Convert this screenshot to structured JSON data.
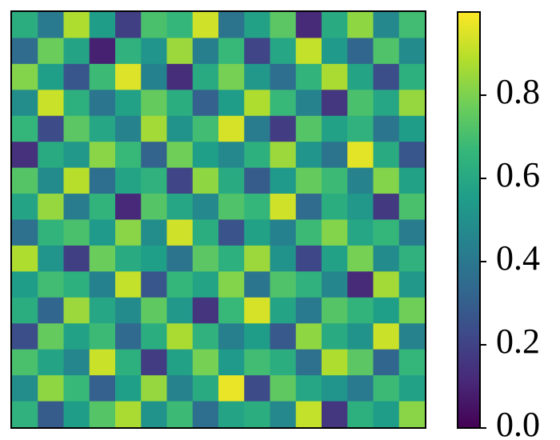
{
  "chart_data": {
    "type": "heatmap",
    "cmap": "viridis",
    "values": [
      [
        0.62,
        0.41,
        0.88,
        0.55,
        0.19,
        0.71,
        0.66,
        0.93,
        0.38,
        0.57,
        0.74,
        0.12,
        0.61,
        0.83,
        0.47,
        0.69
      ],
      [
        0.35,
        0.77,
        0.58,
        0.09,
        0.64,
        0.52,
        0.85,
        0.43,
        0.67,
        0.21,
        0.59,
        0.91,
        0.54,
        0.33,
        0.72,
        0.48
      ],
      [
        0.81,
        0.56,
        0.27,
        0.68,
        0.95,
        0.44,
        0.13,
        0.61,
        0.79,
        0.53,
        0.36,
        0.65,
        0.87,
        0.58,
        0.24,
        0.63
      ],
      [
        0.49,
        0.92,
        0.63,
        0.39,
        0.57,
        0.76,
        0.62,
        0.31,
        0.55,
        0.88,
        0.67,
        0.45,
        0.16,
        0.71,
        0.59,
        0.84
      ],
      [
        0.66,
        0.23,
        0.74,
        0.59,
        0.45,
        0.86,
        0.51,
        0.69,
        0.94,
        0.42,
        0.18,
        0.73,
        0.57,
        0.64,
        0.39,
        0.55
      ],
      [
        0.14,
        0.61,
        0.53,
        0.82,
        0.67,
        0.32,
        0.78,
        0.56,
        0.47,
        0.63,
        0.85,
        0.52,
        0.38,
        0.96,
        0.61,
        0.27
      ],
      [
        0.73,
        0.48,
        0.89,
        0.36,
        0.58,
        0.64,
        0.21,
        0.83,
        0.61,
        0.29,
        0.54,
        0.76,
        0.68,
        0.45,
        0.81,
        0.57
      ],
      [
        0.58,
        0.84,
        0.42,
        0.65,
        0.11,
        0.73,
        0.59,
        0.47,
        0.72,
        0.66,
        0.93,
        0.35,
        0.62,
        0.53,
        0.17,
        0.71
      ],
      [
        0.37,
        0.65,
        0.71,
        0.54,
        0.82,
        0.49,
        0.93,
        0.62,
        0.26,
        0.57,
        0.44,
        0.68,
        0.81,
        0.59,
        0.66,
        0.42
      ],
      [
        0.88,
        0.52,
        0.19,
        0.77,
        0.61,
        0.56,
        0.38,
        0.74,
        0.63,
        0.85,
        0.51,
        0.22,
        0.57,
        0.79,
        0.48,
        0.64
      ],
      [
        0.55,
        0.69,
        0.63,
        0.44,
        0.91,
        0.27,
        0.66,
        0.58,
        0.81,
        0.39,
        0.72,
        0.64,
        0.46,
        0.12,
        0.86,
        0.53
      ],
      [
        0.62,
        0.33,
        0.85,
        0.59,
        0.48,
        0.75,
        0.53,
        0.15,
        0.67,
        0.94,
        0.58,
        0.41,
        0.73,
        0.65,
        0.56,
        0.78
      ],
      [
        0.24,
        0.76,
        0.57,
        0.68,
        0.34,
        0.62,
        0.87,
        0.64,
        0.43,
        0.55,
        0.28,
        0.83,
        0.61,
        0.51,
        0.92,
        0.45
      ],
      [
        0.71,
        0.58,
        0.46,
        0.92,
        0.63,
        0.18,
        0.57,
        0.79,
        0.54,
        0.69,
        0.62,
        0.37,
        0.88,
        0.74,
        0.33,
        0.66
      ],
      [
        0.49,
        0.83,
        0.67,
        0.31,
        0.56,
        0.84,
        0.45,
        0.61,
        0.97,
        0.23,
        0.75,
        0.59,
        0.52,
        0.41,
        0.68,
        0.57
      ],
      [
        0.64,
        0.29,
        0.55,
        0.73,
        0.87,
        0.51,
        0.68,
        0.36,
        0.58,
        0.62,
        0.47,
        0.91,
        0.16,
        0.63,
        0.55,
        0.82
      ]
    ],
    "clim": [
      0,
      1
    ],
    "cticks": [
      {
        "value": 0,
        "label": "0.0"
      },
      0.2,
      0.4,
      0.6,
      0.8
    ]
  }
}
